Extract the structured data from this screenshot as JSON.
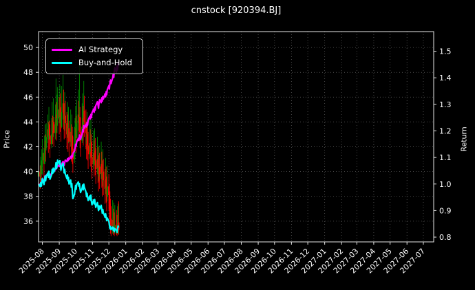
{
  "title": "cnstock [920394.BJ]",
  "colors": {
    "background": "#000000",
    "text": "#ffffff",
    "ai_line": "#ff00ff",
    "buyhold_line": "#00ffff",
    "candle_up": "#008f00",
    "candle_down": "#ff0000",
    "grid": "#5f5f5f",
    "spine": "#e8e8e8"
  },
  "legend": {
    "items": [
      {
        "label": "AI Strategy",
        "color": "#ff00ff"
      },
      {
        "label": "Buy-and-Hold",
        "color": "#00ffff"
      }
    ]
  },
  "chart_data": {
    "type": "candlestick_with_lines",
    "title": "cnstock [920394.BJ]",
    "grid": true,
    "legend_position": "upper-left",
    "price_axis": {
      "side": "left",
      "label": "Price",
      "ticks": [
        36,
        38,
        40,
        42,
        44,
        46,
        48,
        50
      ],
      "range": [
        34.33,
        51.28
      ]
    },
    "return_axis": {
      "side": "right",
      "label": "Return",
      "ticks": [
        0.8,
        0.9,
        1.0,
        1.1,
        1.2,
        1.3,
        1.4,
        1.5
      ],
      "range": [
        0.782,
        1.574
      ]
    },
    "time_axis": {
      "start_date": "2025-07-25",
      "total_days": 725,
      "tick_labels": [
        "2025-08",
        "2025-09",
        "2025-10",
        "2025-11",
        "2025-12",
        "2026-01",
        "2026-02",
        "2026-03",
        "2026-04",
        "2026-05",
        "2026-06",
        "2026-07",
        "2026-08",
        "2026-09",
        "2026-10",
        "2026-11",
        "2026-12",
        "2027-01",
        "2027-02",
        "2027-03",
        "2027-04",
        "2027-05",
        "2027-06",
        "2027-07"
      ]
    },
    "ohlc": {
      "start_date": "2025-07-25",
      "frequency": "trading-days",
      "first_open": 39.6,
      "high": [
        41.0,
        40.5,
        41.2,
        40.8,
        41.8,
        42.6,
        41.9,
        42.9,
        43.8,
        43.0,
        43.9,
        44.6,
        44.0,
        45.2,
        44.1,
        43.5,
        44.3,
        45.6,
        44.5,
        45.9,
        44.4,
        45.4,
        47.5,
        45.6,
        46.2,
        46.8,
        46.0,
        47.0,
        46.3,
        45.2,
        46.9,
        47.8,
        46.6,
        45.5,
        46.4,
        45.7,
        44.8,
        45.6,
        44.6,
        45.2,
        44.1,
        45.0,
        43.8,
        44.6,
        43.6,
        42.8,
        43.6,
        44.3,
        45.3,
        44.5,
        45.8,
        46.6,
        45.7,
        48.8,
        45.2,
        44.3,
        45.5,
        46.3,
        45.3,
        47.3,
        46.1,
        45.0,
        44.0,
        44.8,
        43.9,
        43.2,
        44.2,
        43.4,
        44.3,
        43.0,
        42.3,
        43.3,
        42.5,
        43.5,
        42.7,
        41.9,
        42.8,
        42.0,
        41.3,
        42.1,
        41.5,
        42.4,
        41.6,
        40.9,
        41.8,
        41.0,
        40.2,
        41.1,
        40.4,
        39.6,
        40.5,
        39.8,
        39.0,
        38.4,
        37.8,
        37.2,
        37.7,
        37.0,
        37.5,
        36.7,
        37.3,
        36.9,
        36.5,
        37.2,
        37.4,
        37.6
      ],
      "low": [
        39.0,
        38.6,
        39.3,
        38.8,
        39.8,
        40.4,
        39.5,
        40.7,
        41.4,
        40.8,
        41.7,
        42.3,
        41.5,
        42.6,
        41.8,
        41.1,
        41.9,
        43.0,
        42.2,
        42.8,
        42.0,
        42.6,
        43.3,
        42.5,
        43.1,
        43.8,
        43.0,
        43.9,
        43.2,
        42.4,
        43.5,
        44.2,
        43.4,
        42.6,
        43.3,
        42.7,
        41.8,
        42.7,
        41.6,
        42.3,
        41.2,
        42.0,
        40.8,
        41.7,
        40.6,
        39.9,
        40.7,
        41.4,
        42.2,
        41.5,
        42.7,
        43.3,
        42.5,
        43.1,
        41.9,
        41.2,
        42.3,
        43.0,
        42.1,
        43.6,
        42.8,
        41.8,
        41.0,
        41.7,
        40.9,
        40.2,
        41.0,
        40.4,
        41.1,
        40.0,
        39.4,
        40.2,
        39.6,
        40.5,
        39.7,
        39.0,
        39.8,
        39.1,
        38.4,
        39.2,
        38.6,
        39.4,
        38.7,
        38.0,
        38.8,
        38.1,
        37.4,
        38.2,
        37.5,
        36.8,
        37.6,
        36.9,
        36.2,
        35.6,
        35.0,
        34.8,
        35.0,
        34.9,
        35.1,
        34.8,
        35.0,
        34.9,
        34.8,
        35.1,
        35.2,
        34.9
      ],
      "close": [
        40.0,
        39.6,
        40.4,
        39.8,
        40.9,
        41.5,
        40.6,
        41.8,
        42.5,
        41.9,
        42.8,
        43.4,
        42.6,
        43.8,
        42.9,
        42.2,
        43.0,
        44.1,
        43.3,
        44.0,
        43.1,
        43.8,
        44.6,
        43.7,
        44.3,
        45.0,
        44.2,
        45.1,
        44.4,
        43.6,
        44.8,
        45.5,
        44.7,
        43.8,
        44.5,
        43.9,
        43.0,
        43.9,
        42.8,
        43.5,
        42.4,
        43.2,
        42.0,
        42.9,
        41.8,
        41.0,
        41.9,
        42.6,
        43.5,
        42.7,
        43.9,
        44.6,
        43.8,
        44.4,
        43.2,
        42.5,
        43.6,
        44.3,
        43.4,
        44.9,
        44.0,
        43.1,
        42.2,
        43.0,
        42.1,
        41.4,
        42.3,
        41.6,
        42.4,
        41.2,
        40.6,
        41.5,
        40.8,
        41.7,
        40.9,
        40.2,
        41.0,
        40.3,
        39.6,
        40.4,
        39.8,
        40.6,
        39.9,
        39.2,
        40.0,
        39.3,
        38.6,
        39.4,
        38.7,
        38.0,
        38.8,
        38.1,
        37.4,
        36.8,
        36.2,
        35.6,
        36.1,
        35.5,
        35.9,
        35.2,
        35.7,
        35.4,
        35.0,
        35.7,
        35.9,
        35.3
      ]
    },
    "series": [
      {
        "name": "AI Strategy",
        "axis": "return",
        "color": "#ff00ff",
        "values": [
          1.0,
          0.998,
          1.005,
          1.002,
          1.01,
          1.018,
          1.012,
          1.022,
          1.03,
          1.025,
          1.033,
          1.04,
          1.034,
          1.044,
          1.038,
          1.032,
          1.04,
          1.05,
          1.044,
          1.052,
          1.046,
          1.055,
          1.065,
          1.058,
          1.064,
          1.072,
          1.066,
          1.076,
          1.07,
          1.062,
          1.074,
          1.085,
          1.078,
          1.07,
          1.08,
          1.09,
          1.084,
          1.095,
          1.088,
          1.098,
          1.092,
          1.104,
          1.096,
          1.108,
          1.102,
          1.115,
          1.125,
          1.135,
          1.15,
          1.142,
          1.158,
          1.172,
          1.164,
          1.185,
          1.176,
          1.168,
          1.19,
          1.205,
          1.196,
          1.22,
          1.21,
          1.225,
          1.215,
          1.232,
          1.222,
          1.24,
          1.255,
          1.245,
          1.262,
          1.25,
          1.268,
          1.282,
          1.27,
          1.29,
          1.278,
          1.295,
          1.31,
          1.298,
          1.285,
          1.305,
          1.318,
          1.306,
          1.325,
          1.312,
          1.33,
          1.32,
          1.34,
          1.328,
          1.348,
          1.336,
          1.355,
          1.37,
          1.358,
          1.38,
          1.392,
          1.378,
          1.4,
          1.415,
          1.402,
          1.425,
          1.438,
          1.42,
          1.445,
          1.43,
          1.455,
          1.448
        ]
      },
      {
        "name": "Buy-and-Hold",
        "axis": "return",
        "color": "#00ffff",
        "values": [
          1.0,
          0.99,
          1.005,
          0.992,
          1.008,
          1.02,
          0.998,
          1.015,
          1.03,
          1.012,
          1.028,
          1.042,
          1.025,
          1.048,
          1.032,
          1.018,
          1.035,
          1.055,
          1.04,
          1.06,
          1.045,
          1.062,
          1.08,
          1.058,
          1.072,
          1.09,
          1.075,
          1.088,
          1.07,
          1.052,
          1.066,
          1.078,
          1.06,
          1.042,
          1.055,
          1.038,
          1.02,
          1.035,
          1.012,
          1.025,
          1.0,
          1.015,
          0.988,
          1.002,
          0.972,
          0.945,
          0.962,
          0.978,
          0.995,
          0.98,
          0.998,
          1.008,
          0.992,
          1.002,
          0.982,
          0.968,
          0.985,
          0.996,
          0.978,
          1.0,
          0.988,
          0.97,
          0.952,
          0.965,
          0.95,
          0.938,
          0.955,
          0.94,
          0.958,
          0.935,
          0.922,
          0.94,
          0.925,
          0.942,
          0.928,
          0.912,
          0.93,
          0.915,
          0.9,
          0.918,
          0.905,
          0.92,
          0.906,
          0.89,
          0.904,
          0.892,
          0.875,
          0.888,
          0.876,
          0.862,
          0.872,
          0.86,
          0.845,
          0.832,
          0.84,
          0.828,
          0.838,
          0.826,
          0.835,
          0.82,
          0.832,
          0.826,
          0.818,
          0.834,
          0.842,
          0.836
        ]
      }
    ]
  }
}
